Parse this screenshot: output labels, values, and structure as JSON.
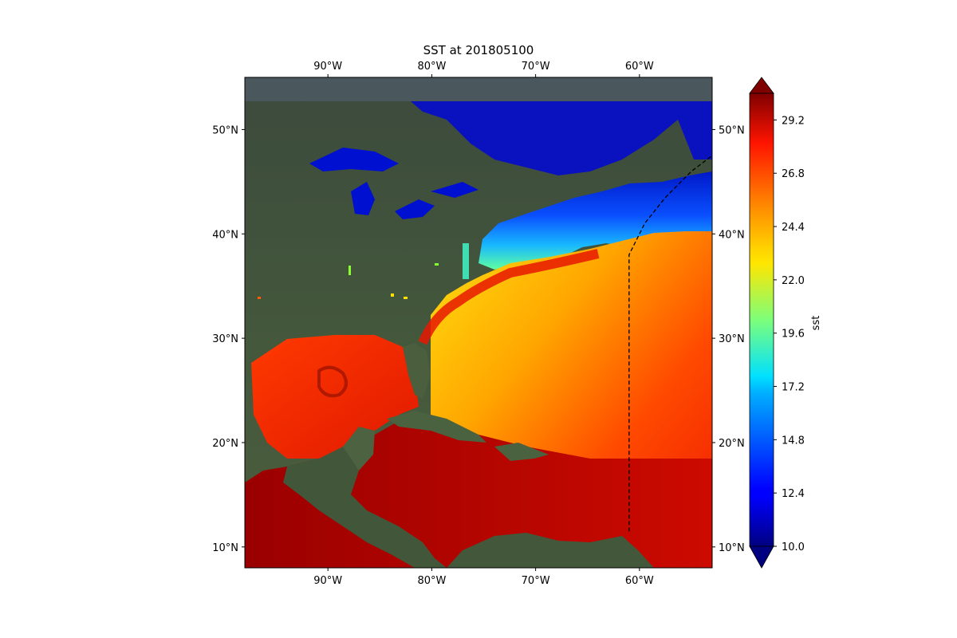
{
  "chart_data": {
    "type": "heatmap",
    "title": "SST at 201805100",
    "projection": "PlateCarree",
    "basemap": "satellite-imagery",
    "extent": {
      "lon": [
        -98,
        -53
      ],
      "lat": [
        8,
        55
      ]
    },
    "lon_ticks": [
      {
        "value": -90,
        "label": "90°W"
      },
      {
        "value": -80,
        "label": "80°W"
      },
      {
        "value": -70,
        "label": "70°W"
      },
      {
        "value": -60,
        "label": "60°W"
      }
    ],
    "lat_ticks": [
      {
        "value": 10,
        "label": "10°N"
      },
      {
        "value": 20,
        "label": "20°N"
      },
      {
        "value": 30,
        "label": "30°N"
      },
      {
        "value": 40,
        "label": "40°N"
      },
      {
        "value": 50,
        "label": "50°N"
      }
    ],
    "colorbar": {
      "label": "sst",
      "colormap": "jet",
      "range": [
        10.0,
        30.4
      ],
      "extend": "both",
      "ticks": [
        {
          "value": 10.0,
          "label": "10.0"
        },
        {
          "value": 12.4,
          "label": "12.4"
        },
        {
          "value": 14.8,
          "label": "14.8"
        },
        {
          "value": 17.2,
          "label": "17.2"
        },
        {
          "value": 19.6,
          "label": "19.6"
        },
        {
          "value": 22.0,
          "label": "22.0"
        },
        {
          "value": 24.4,
          "label": "24.4"
        },
        {
          "value": 26.8,
          "label": "26.8"
        },
        {
          "value": 29.2,
          "label": "29.2"
        }
      ]
    },
    "dashed_track": {
      "color": "#000000",
      "points": [
        {
          "lon": -61,
          "lat": 11.5
        },
        {
          "lon": -61,
          "lat": 38
        },
        {
          "lon": -59.5,
          "lat": 41
        },
        {
          "lon": -57.5,
          "lat": 43.5
        },
        {
          "lon": -55,
          "lat": 46
        },
        {
          "lon": -53,
          "lat": 47.5
        }
      ]
    }
  }
}
